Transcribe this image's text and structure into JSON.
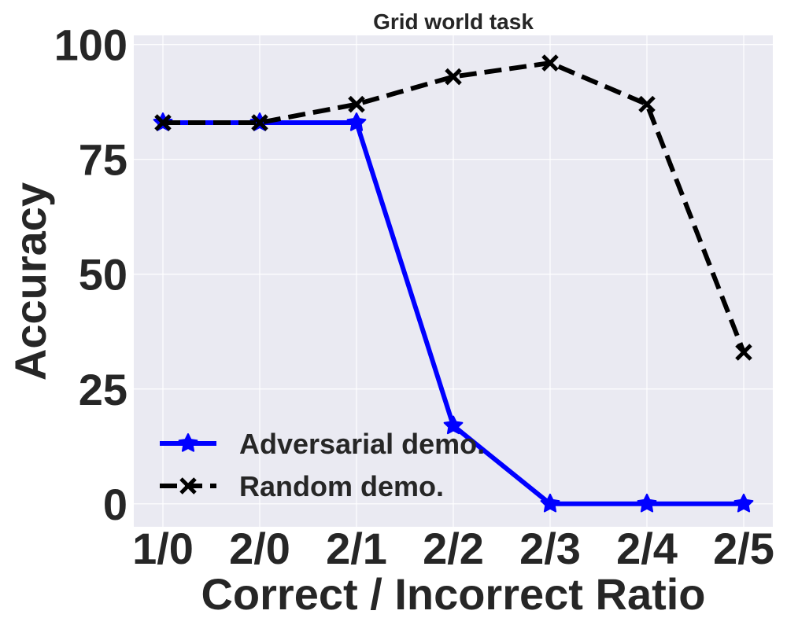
{
  "chart_data": {
    "type": "line",
    "title": "Grid world task",
    "xlabel": "Correct / Incorrect  Ratio",
    "ylabel": "Accuracy",
    "categories": [
      "1/0",
      "2/0",
      "2/1",
      "2/2",
      "2/3",
      "2/4",
      "2/5"
    ],
    "ylim": [
      -5,
      102
    ],
    "yticks": [
      0,
      25,
      50,
      75,
      100
    ],
    "grid": true,
    "legend_position": "lower-left",
    "background": "#eaeaf2",
    "series": [
      {
        "name": "Adversarial demo.",
        "values": [
          83,
          83,
          83,
          17,
          0,
          0,
          0
        ],
        "color": "#0000ff",
        "line_style": "solid",
        "marker": "star"
      },
      {
        "name": "Random demo.",
        "values": [
          83,
          83,
          87,
          93,
          96,
          87,
          33
        ],
        "color": "#000000",
        "line_style": "dashed",
        "marker": "x"
      }
    ]
  }
}
